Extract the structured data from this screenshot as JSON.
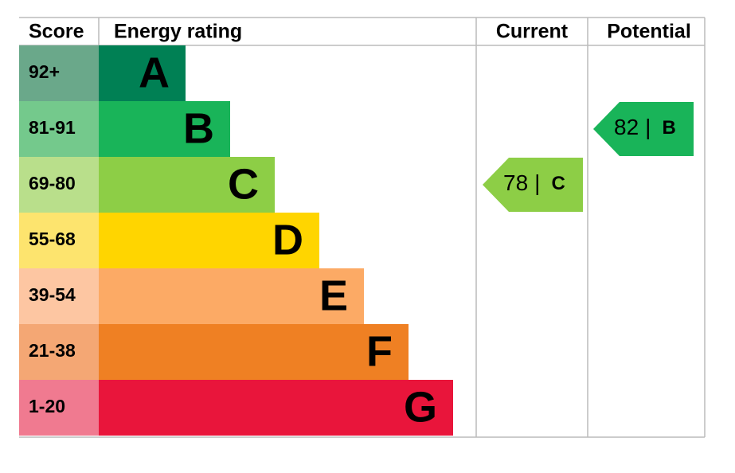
{
  "headers": {
    "score": "Score",
    "rating": "Energy rating",
    "current": "Current",
    "potential": "Potential"
  },
  "bands": [
    {
      "score": "92+",
      "letter": "A",
      "color": "#008054",
      "light": "#6aa88a"
    },
    {
      "score": "81-91",
      "letter": "B",
      "color": "#19b459",
      "light": "#74c98c"
    },
    {
      "score": "69-80",
      "letter": "C",
      "color": "#8dce46",
      "light": "#b9df8b"
    },
    {
      "score": "55-68",
      "letter": "D",
      "color": "#ffd500",
      "light": "#fde46e"
    },
    {
      "score": "39-54",
      "letter": "E",
      "color": "#fcaa65",
      "light": "#fdc6a2"
    },
    {
      "score": "21-38",
      "letter": "F",
      "color": "#ef8023",
      "light": "#f4a774"
    },
    {
      "score": "1-20",
      "letter": "G",
      "color": "#e9153b",
      "light": "#f07a90"
    }
  ],
  "current": {
    "value": 78,
    "letter": "C"
  },
  "potential": {
    "value": 82,
    "letter": "B"
  }
}
